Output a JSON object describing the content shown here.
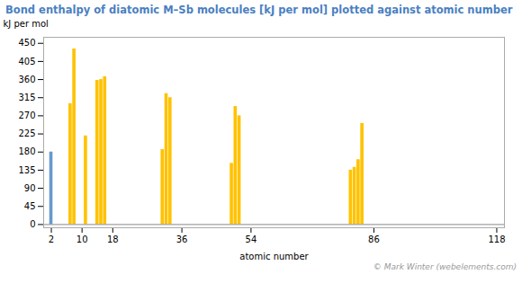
{
  "chart_data": {
    "type": "bar",
    "title": "Bond enthalpy of diatomic M–Sb molecules [kJ per mol] plotted against atomic number",
    "xlabel": "atomic number",
    "ylabel": "kJ per mol",
    "x": [
      2,
      7,
      8,
      11,
      14,
      15,
      16,
      31,
      32,
      33,
      49,
      50,
      51,
      80,
      81,
      82,
      83
    ],
    "values": [
      180,
      300,
      436,
      220,
      358,
      360,
      367,
      186,
      325,
      315,
      152,
      293,
      270,
      135,
      142,
      161,
      251
    ],
    "colors": [
      "#6699cc",
      "#ffc200",
      "#ffc200",
      "#ffc200",
      "#ffc200",
      "#ffc200",
      "#ffc200",
      "#ffc200",
      "#ffc200",
      "#ffc200",
      "#ffc200",
      "#ffc200",
      "#ffc200",
      "#ffc200",
      "#ffc200",
      "#ffc200",
      "#ffc200"
    ],
    "xlim": [
      0,
      120
    ],
    "xticks": [
      2,
      10,
      18,
      36,
      54,
      86,
      118
    ],
    "ylim": [
      -8,
      465
    ],
    "yticks": [
      0,
      45,
      90,
      135,
      180,
      225,
      270,
      315,
      360,
      405,
      450
    ],
    "grid": false,
    "annotations": [
      "© Mark Winter (webelements.com)"
    ]
  }
}
